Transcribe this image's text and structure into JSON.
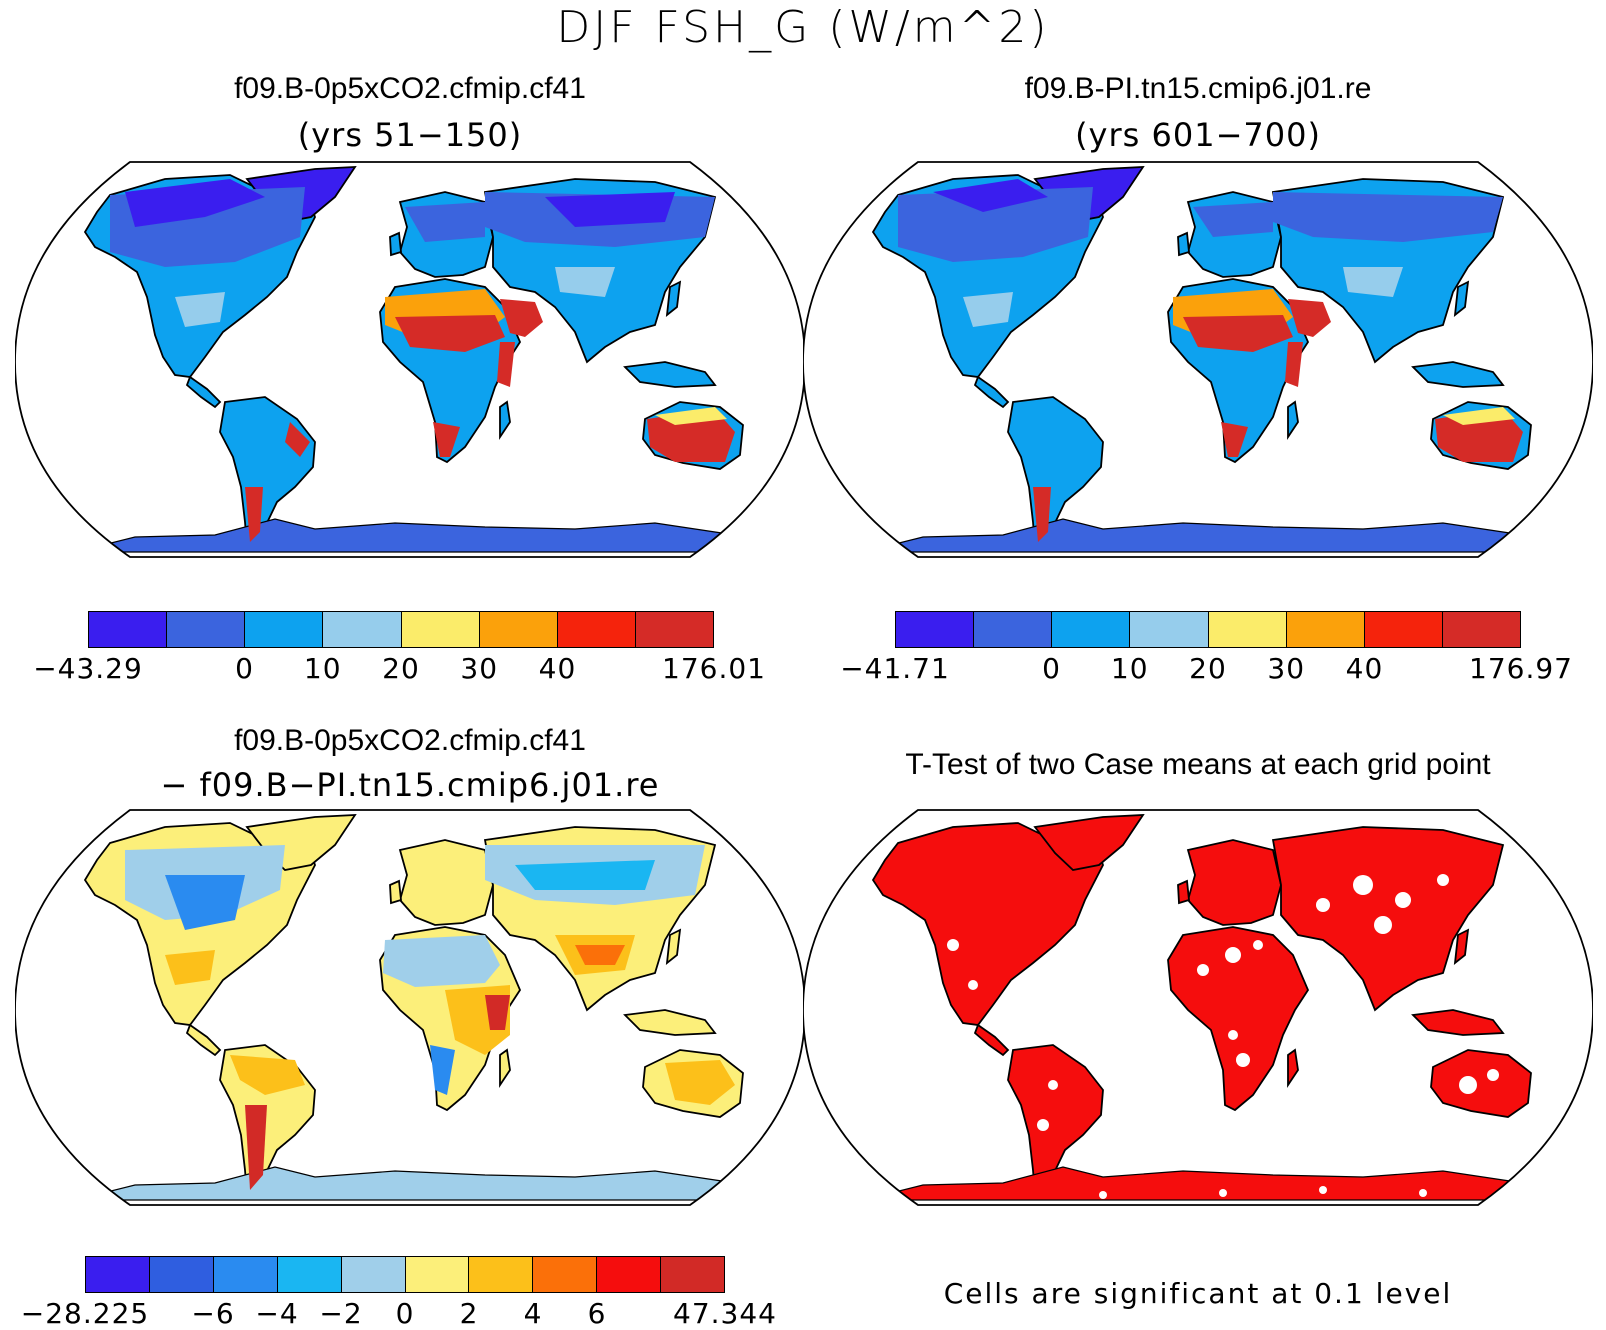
{
  "title": "DJF FSH_G (W/m^2)",
  "panels": [
    {
      "title": "f09.B-0p5xCO2.cfmip.cf41",
      "subtitle": "(yrs 51−150)",
      "colorbar": {
        "colors": [
          "#3a1eef",
          "#3b64de",
          "#0da2ef",
          "#96cdec",
          "#fbec6a",
          "#fba10b",
          "#f5230c",
          "#d52b27"
        ],
        "ticks": [
          "−43.29",
          "0",
          "10",
          "20",
          "30",
          "40",
          "176.01"
        ]
      }
    },
    {
      "title": "f09.B-PI.tn15.cmip6.j01.re",
      "subtitle": "(yrs 601−700)",
      "colorbar": {
        "colors": [
          "#3a1eef",
          "#3b64de",
          "#0da2ef",
          "#96cdec",
          "#fbec6a",
          "#fba10b",
          "#f5230c",
          "#d52b27"
        ],
        "ticks": [
          "−41.71",
          "0",
          "10",
          "20",
          "30",
          "40",
          "176.97"
        ]
      }
    },
    {
      "title": "f09.B-0p5xCO2.cfmip.cf41",
      "subtitle": "− f09.B−PI.tn15.cmip6.j01.re",
      "colorbar": {
        "colors": [
          "#3a1eef",
          "#2f5ee0",
          "#2a8bf0",
          "#1ab6f2",
          "#a0cfea",
          "#fcef7a",
          "#fcc01a",
          "#fb7009",
          "#f50d0d",
          "#d22a26"
        ],
        "ticks": [
          "−28.225",
          "−6",
          "−4",
          "−2",
          "0",
          "2",
          "4",
          "6",
          "47.344"
        ]
      }
    },
    {
      "title": "T-Test of two Case means at each grid point",
      "note": "Cells are significant at 0.1 level",
      "color": "#f50d0d"
    }
  ]
}
